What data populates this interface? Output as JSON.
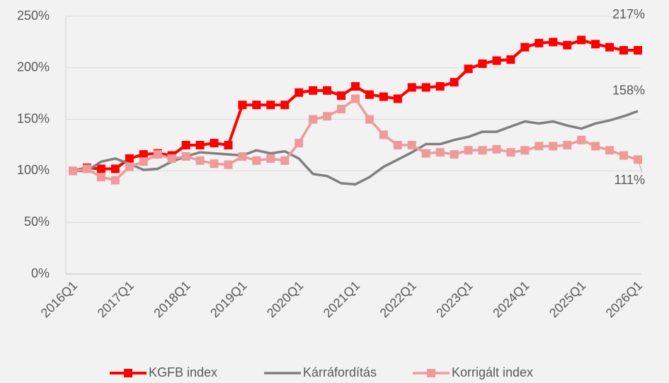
{
  "chart_data": {
    "type": "line",
    "categories": [
      "2016Q1",
      null,
      null,
      null,
      "2017Q1",
      null,
      null,
      null,
      "2018Q1",
      null,
      null,
      null,
      "2019Q1",
      null,
      null,
      null,
      "2020Q1",
      null,
      null,
      null,
      "2021Q1",
      null,
      null,
      null,
      "2022Q1",
      null,
      null,
      null,
      "2023Q1",
      null,
      null,
      null,
      "2024Q1",
      null,
      null,
      null,
      "2025Q1",
      null,
      null,
      null,
      "2026Q1"
    ],
    "series": [
      {
        "name": "KGFB index",
        "color": "#ff0000",
        "marker": "square",
        "values": [
          100,
          103,
          102,
          102,
          112,
          116,
          117,
          115,
          125,
          125,
          127,
          125,
          164,
          164,
          164,
          164,
          176,
          178,
          178,
          173,
          182,
          174,
          172,
          170,
          181,
          181,
          182,
          186,
          199,
          204,
          207,
          208,
          220,
          224,
          225,
          222,
          227,
          223,
          220,
          217,
          217
        ],
        "value_labels": [
          null,
          null,
          null,
          null,
          null,
          null,
          null,
          null,
          null,
          null,
          null,
          null,
          null,
          null,
          null,
          null,
          null,
          null,
          null,
          null,
          null,
          null,
          null,
          null,
          null,
          null,
          null,
          null,
          null,
          null,
          null,
          null,
          null,
          null,
          null,
          null,
          null,
          null,
          null,
          null,
          "217%"
        ]
      },
      {
        "name": "Kárráfordítás",
        "color": "#808080",
        "marker": "none",
        "values": [
          100,
          100,
          109,
          112,
          107,
          101,
          102,
          109,
          114,
          118,
          117,
          116,
          115,
          120,
          117,
          119,
          112,
          97,
          95,
          88,
          87,
          94,
          104,
          111,
          118,
          126,
          126,
          130,
          133,
          138,
          138,
          143,
          148,
          146,
          148,
          144,
          141,
          146,
          149,
          153,
          158
        ],
        "value_labels": [
          null,
          null,
          null,
          null,
          null,
          null,
          null,
          null,
          null,
          null,
          null,
          null,
          null,
          null,
          null,
          null,
          null,
          null,
          null,
          null,
          null,
          null,
          null,
          null,
          null,
          null,
          null,
          null,
          null,
          null,
          null,
          null,
          null,
          null,
          null,
          null,
          null,
          null,
          null,
          null,
          "158%"
        ]
      },
      {
        "name": "Korrigált index",
        "color": "#ee9a9a",
        "marker": "square",
        "values": [
          100,
          102,
          94,
          91,
          104,
          109,
          116,
          112,
          114,
          110,
          107,
          106,
          114,
          110,
          112,
          110,
          127,
          150,
          153,
          160,
          170,
          150,
          135,
          125,
          125,
          117,
          118,
          116,
          120,
          120,
          121,
          118,
          120,
          124,
          124,
          125,
          130,
          124,
          120,
          115,
          111
        ],
        "value_labels": [
          null,
          null,
          null,
          null,
          null,
          null,
          null,
          null,
          null,
          null,
          null,
          null,
          null,
          null,
          null,
          null,
          null,
          null,
          null,
          null,
          null,
          null,
          null,
          null,
          null,
          null,
          null,
          null,
          null,
          null,
          null,
          null,
          null,
          null,
          null,
          null,
          null,
          null,
          null,
          null,
          "111%"
        ]
      }
    ],
    "ylim": [
      0,
      250
    ],
    "yticks": [
      {
        "value": 0,
        "label": "0%"
      },
      {
        "value": 50,
        "label": "50%"
      },
      {
        "value": 100,
        "label": "100%"
      },
      {
        "value": 150,
        "label": "150%"
      },
      {
        "value": 200,
        "label": "200%"
      },
      {
        "value": 250,
        "label": "250%"
      }
    ],
    "grid": true,
    "legend": "bottom"
  }
}
